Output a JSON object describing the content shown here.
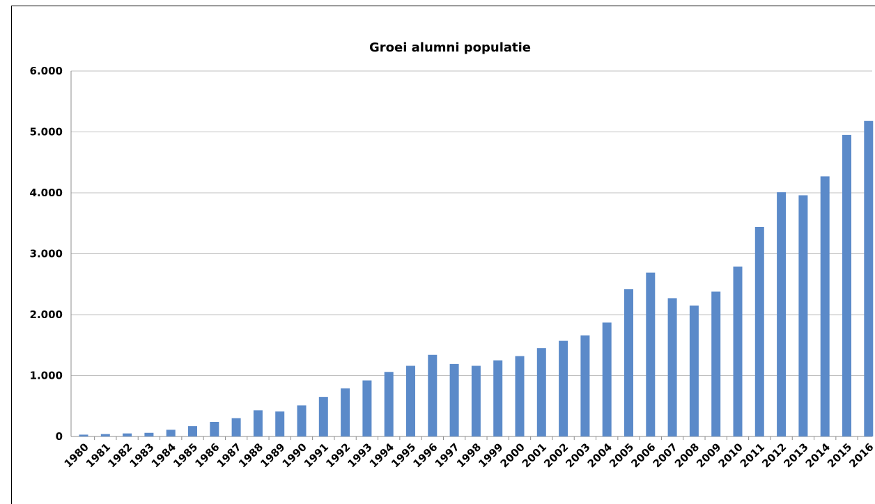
{
  "chart_data": {
    "type": "bar",
    "title": "Groei alumni populatie",
    "xlabel": "",
    "ylabel": "",
    "ylim": [
      0,
      6000
    ],
    "y_ticks": [
      "0",
      "1.000",
      "2.000",
      "3.000",
      "4.000",
      "5.000",
      "6.000"
    ],
    "grid": true,
    "legend": "none",
    "bar_color": "#5b8ac9",
    "categories": [
      "1980",
      "1981",
      "1982",
      "1983",
      "1984",
      "1985",
      "1986",
      "1987",
      "1988",
      "1989",
      "1990",
      "1991",
      "1992",
      "1993",
      "1994",
      "1995",
      "1996",
      "1997",
      "1998",
      "1999",
      "2000",
      "2001",
      "2002",
      "2003",
      "2004",
      "2005",
      "2006",
      "2007",
      "2008",
      "2009",
      "2010",
      "2011",
      "2012",
      "2013",
      "2014",
      "2015",
      "2016"
    ],
    "values": [
      30,
      40,
      50,
      60,
      110,
      170,
      240,
      300,
      430,
      410,
      510,
      650,
      790,
      920,
      1060,
      1160,
      1340,
      1190,
      1160,
      1250,
      1320,
      1450,
      1570,
      1660,
      1870,
      2420,
      2690,
      2270,
      2150,
      2380,
      2790,
      3440,
      4010,
      3960,
      4270,
      4950,
      5180
    ]
  }
}
